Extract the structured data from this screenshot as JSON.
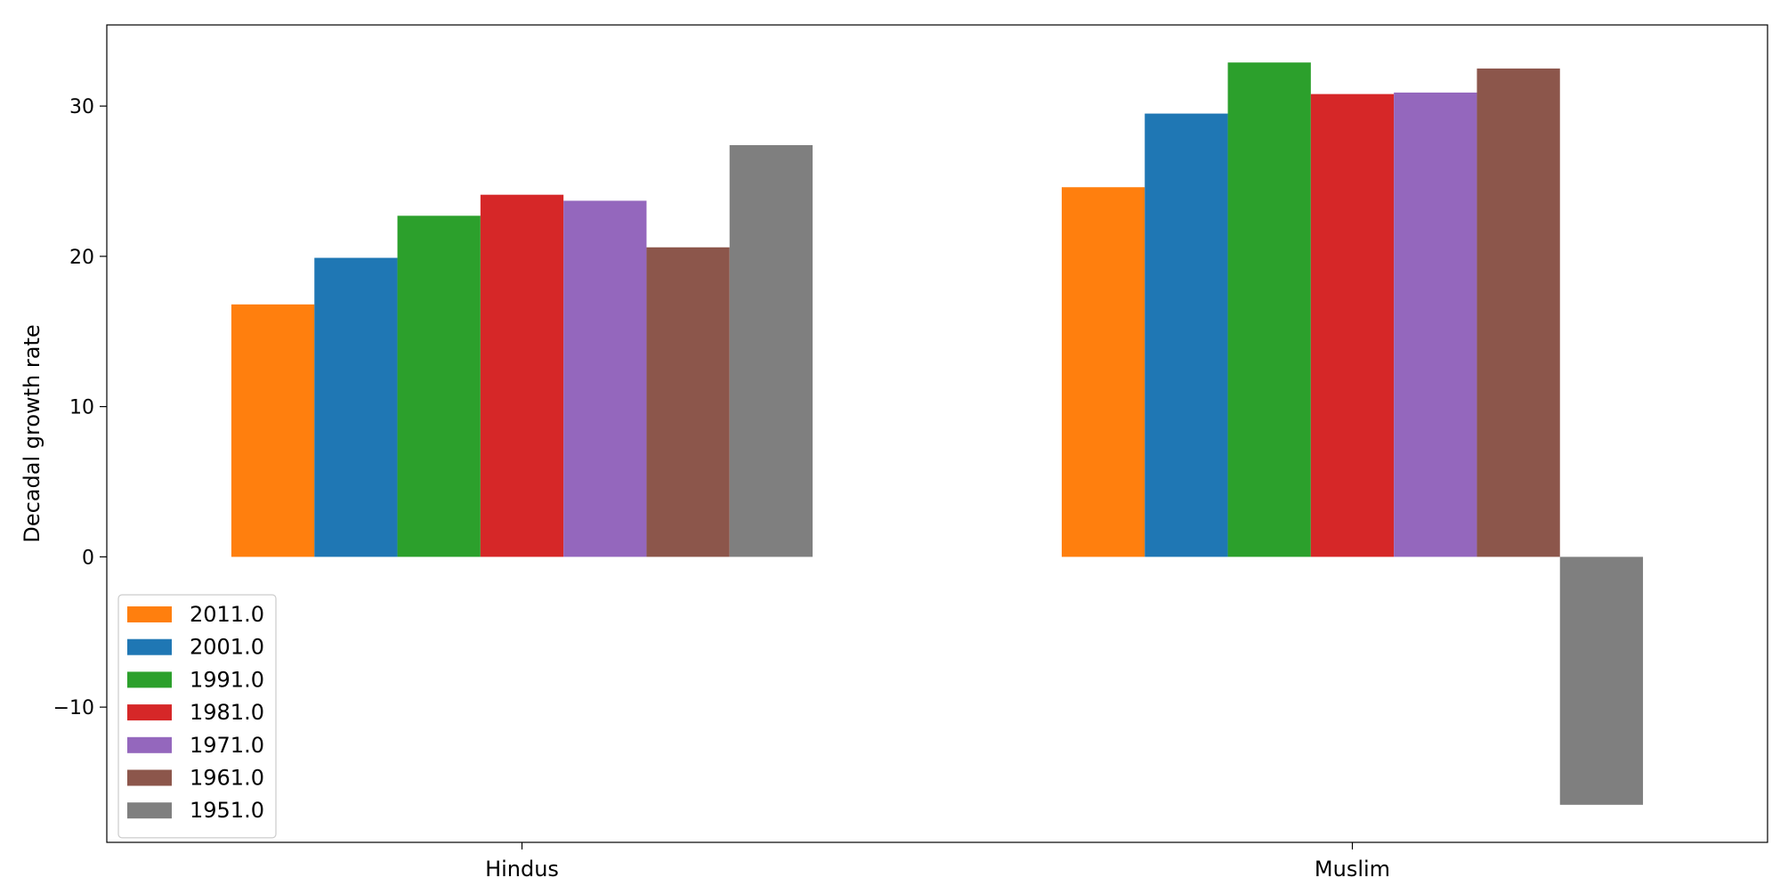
{
  "chart_data": {
    "type": "bar",
    "title": "",
    "xlabel": "",
    "ylabel": "Decadal growth rate",
    "categories": [
      "Hindus",
      "Muslim"
    ],
    "ylim": [
      -19,
      35.4
    ],
    "yticks": [
      -10,
      0,
      10,
      20,
      30
    ],
    "ytick_labels": [
      "−10",
      "0",
      "10",
      "20",
      "30"
    ],
    "grid": false,
    "legend_position": "lower-left",
    "series": [
      {
        "name": "2011.0",
        "color": "#ff7f0e",
        "values": [
          16.8,
          24.6
        ]
      },
      {
        "name": "2001.0",
        "color": "#1f77b4",
        "values": [
          19.9,
          29.5
        ]
      },
      {
        "name": "1991.0",
        "color": "#2ca02c",
        "values": [
          22.7,
          32.9
        ]
      },
      {
        "name": "1981.0",
        "color": "#d62728",
        "values": [
          24.1,
          30.8
        ]
      },
      {
        "name": "1971.0",
        "color": "#9467bd",
        "values": [
          23.7,
          30.9
        ]
      },
      {
        "name": "1961.0",
        "color": "#8c564b",
        "values": [
          20.6,
          32.5
        ]
      },
      {
        "name": "1951.0",
        "color": "#7f7f7f",
        "values": [
          27.4,
          -16.5
        ]
      }
    ]
  }
}
